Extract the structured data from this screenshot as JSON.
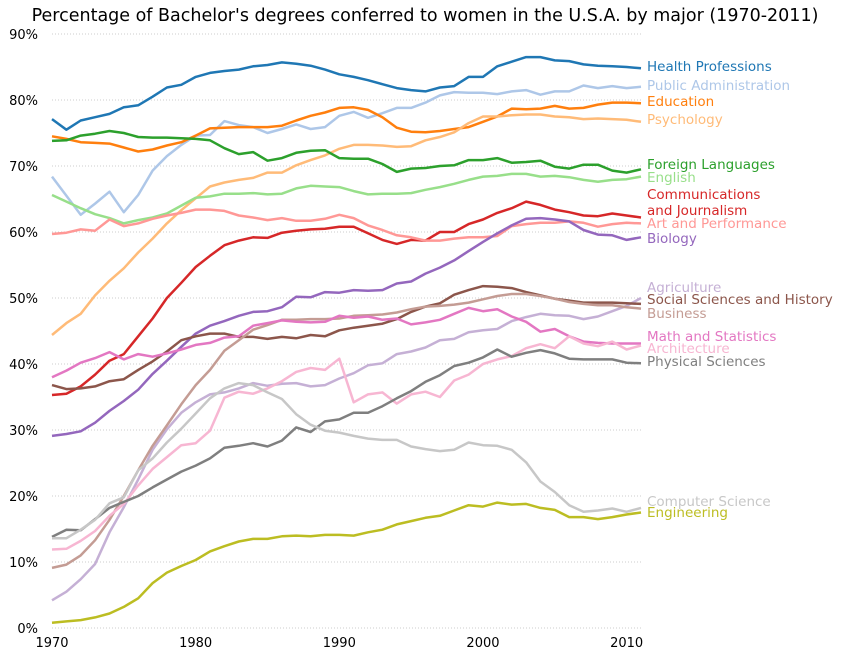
{
  "chart_data": {
    "type": "line",
    "title": "Percentage of Bachelor's degrees conferred to women in the U.S.A. by major (1970-2011)",
    "xlabel": "",
    "ylabel": "",
    "xlim": [
      1970,
      2011
    ],
    "ylim": [
      0,
      90
    ],
    "x_ticks": [
      "1970",
      "1980",
      "1990",
      "2000",
      "2010"
    ],
    "y_ticks": [
      "0%",
      "10%",
      "20%",
      "30%",
      "40%",
      "50%",
      "60%",
      "70%",
      "80%",
      "90%"
    ],
    "grid": "horizontal-dotted",
    "legend": "labels at right end of each line",
    "x": [
      1970,
      1971,
      1972,
      1973,
      1974,
      1975,
      1976,
      1977,
      1978,
      1979,
      1980,
      1981,
      1982,
      1983,
      1984,
      1985,
      1986,
      1987,
      1988,
      1989,
      1990,
      1991,
      1992,
      1993,
      1994,
      1995,
      1996,
      1997,
      1998,
      1999,
      2000,
      2001,
      2002,
      2003,
      2004,
      2005,
      2006,
      2007,
      2008,
      2009,
      2010,
      2011
    ],
    "series": [
      {
        "name": "Health Professions",
        "color": "#1f77b4",
        "values": [
          77.1,
          75.5,
          76.9,
          77.4,
          77.9,
          78.9,
          79.2,
          80.5,
          81.9,
          82.3,
          83.5,
          84.1,
          84.4,
          84.6,
          85.1,
          85.3,
          85.7,
          85.5,
          85.2,
          84.6,
          83.9,
          83.5,
          83.0,
          82.4,
          81.8,
          81.5,
          81.3,
          81.9,
          82.1,
          83.5,
          83.5,
          85.1,
          85.8,
          86.5,
          86.5,
          86.0,
          85.9,
          85.4,
          85.2,
          85.1,
          85.0,
          84.8
        ]
      },
      {
        "name": "Public Administration",
        "color": "#aec7e8",
        "values": [
          68.4,
          65.5,
          62.6,
          64.3,
          66.1,
          63.0,
          65.6,
          69.3,
          71.5,
          73.2,
          74.6,
          74.7,
          76.8,
          76.2,
          75.9,
          75.0,
          75.6,
          76.3,
          75.6,
          75.9,
          77.6,
          78.2,
          77.3,
          78.0,
          78.8,
          78.8,
          79.6,
          80.7,
          81.2,
          81.1,
          81.1,
          80.9,
          81.3,
          81.5,
          80.8,
          81.3,
          81.3,
          82.2,
          81.8,
          82.1,
          81.8,
          82.0
        ]
      },
      {
        "name": "Education",
        "color": "#ff7f0e",
        "values": [
          74.5,
          74.1,
          73.6,
          73.5,
          73.4,
          72.8,
          72.2,
          72.5,
          73.1,
          73.6,
          74.6,
          75.7,
          75.8,
          75.9,
          75.9,
          75.9,
          76.1,
          76.9,
          77.6,
          78.1,
          78.8,
          78.9,
          78.5,
          77.4,
          75.8,
          75.2,
          75.1,
          75.3,
          75.6,
          75.9,
          76.7,
          77.5,
          78.7,
          78.6,
          78.7,
          79.1,
          78.7,
          78.8,
          79.3,
          79.6,
          79.6,
          79.5
        ]
      },
      {
        "name": "Psychology",
        "color": "#ffbb78",
        "values": [
          44.4,
          46.2,
          47.6,
          50.4,
          52.6,
          54.5,
          56.9,
          59.0,
          61.3,
          63.3,
          65.1,
          66.9,
          67.5,
          67.9,
          68.2,
          69.0,
          69.0,
          70.1,
          70.9,
          71.6,
          72.6,
          73.2,
          73.2,
          73.1,
          72.9,
          73.0,
          73.9,
          74.4,
          75.1,
          76.5,
          77.5,
          77.5,
          77.7,
          77.8,
          77.8,
          77.5,
          77.4,
          77.1,
          77.2,
          77.1,
          77.0,
          76.7
        ]
      },
      {
        "name": "Foreign Languages",
        "color": "#2ca02c",
        "values": [
          73.8,
          73.9,
          74.6,
          74.9,
          75.3,
          75.0,
          74.4,
          74.3,
          74.3,
          74.2,
          74.1,
          73.9,
          72.7,
          71.8,
          72.1,
          70.8,
          71.2,
          72.0,
          72.3,
          72.4,
          71.2,
          71.1,
          71.1,
          70.3,
          69.1,
          69.6,
          69.7,
          70.0,
          70.1,
          70.9,
          70.9,
          71.2,
          70.5,
          70.6,
          70.8,
          69.9,
          69.6,
          70.2,
          70.2,
          69.3,
          69.0,
          69.5
        ]
      },
      {
        "name": "English",
        "color": "#98df8a",
        "values": [
          65.6,
          64.6,
          63.6,
          62.7,
          62.1,
          61.3,
          61.8,
          62.2,
          62.8,
          64.0,
          65.2,
          65.4,
          65.8,
          65.8,
          65.9,
          65.7,
          65.8,
          66.6,
          67.0,
          66.9,
          66.8,
          66.2,
          65.7,
          65.8,
          65.8,
          65.9,
          66.4,
          66.8,
          67.3,
          67.9,
          68.4,
          68.5,
          68.8,
          68.8,
          68.4,
          68.5,
          68.3,
          67.9,
          67.6,
          67.9,
          68.0,
          68.4
        ]
      },
      {
        "name": "Communications\nand Journalism",
        "color": "#d62728",
        "values": [
          35.3,
          35.5,
          36.6,
          38.4,
          40.5,
          41.5,
          44.2,
          46.9,
          50.0,
          52.3,
          54.7,
          56.4,
          58.0,
          58.7,
          59.2,
          59.1,
          59.9,
          60.2,
          60.4,
          60.5,
          60.8,
          60.8,
          59.8,
          58.8,
          58.2,
          58.8,
          58.7,
          60.0,
          60.0,
          61.2,
          61.9,
          62.9,
          63.6,
          64.6,
          64.1,
          63.4,
          63.0,
          62.5,
          62.4,
          62.8,
          62.5,
          62.2
        ]
      },
      {
        "name": "Art and Performance",
        "color": "#ff9896",
        "values": [
          59.7,
          59.9,
          60.4,
          60.2,
          61.9,
          60.9,
          61.3,
          62.0,
          62.5,
          62.9,
          63.4,
          63.4,
          63.2,
          62.5,
          62.2,
          61.8,
          62.1,
          61.7,
          61.7,
          62.0,
          62.6,
          62.1,
          61.0,
          60.3,
          59.5,
          59.2,
          58.7,
          58.7,
          59.0,
          59.2,
          59.2,
          59.4,
          60.9,
          61.2,
          61.4,
          61.4,
          61.6,
          61.4,
          60.8,
          61.2,
          61.4,
          61.3
        ]
      },
      {
        "name": "Biology",
        "color": "#9467bd",
        "values": [
          29.1,
          29.4,
          29.8,
          31.1,
          32.9,
          34.4,
          36.1,
          38.5,
          40.5,
          42.6,
          44.6,
          45.8,
          46.5,
          47.3,
          47.9,
          48.0,
          48.6,
          50.2,
          50.1,
          50.9,
          50.8,
          51.2,
          51.1,
          51.2,
          52.2,
          52.5,
          53.7,
          54.6,
          55.7,
          57.1,
          58.5,
          59.8,
          61.0,
          62.0,
          62.1,
          61.9,
          61.6,
          60.3,
          59.6,
          59.5,
          58.8,
          59.2
        ]
      },
      {
        "name": "Agriculture",
        "color": "#c5b0d5",
        "values": [
          4.2,
          5.5,
          7.4,
          9.7,
          14.5,
          18.3,
          22.5,
          27.0,
          30.1,
          32.6,
          34.2,
          35.4,
          35.7,
          36.3,
          37.1,
          36.7,
          37.0,
          37.1,
          36.6,
          36.8,
          37.8,
          38.6,
          39.8,
          40.1,
          41.5,
          41.9,
          42.5,
          43.6,
          43.8,
          44.8,
          45.1,
          45.3,
          46.5,
          47.1,
          47.6,
          47.4,
          47.3,
          46.8,
          47.2,
          48.0,
          48.8,
          50.0
        ]
      },
      {
        "name": "Social Sciences and History",
        "color": "#8c564b",
        "values": [
          36.8,
          36.2,
          36.3,
          36.6,
          37.4,
          37.7,
          39.1,
          40.4,
          41.9,
          43.6,
          44.2,
          44.6,
          44.6,
          44.1,
          44.1,
          43.8,
          44.1,
          43.9,
          44.4,
          44.2,
          45.1,
          45.5,
          45.8,
          46.1,
          46.8,
          47.9,
          48.7,
          49.2,
          50.5,
          51.2,
          51.8,
          51.7,
          51.5,
          50.9,
          50.4,
          49.9,
          49.6,
          49.3,
          49.3,
          49.3,
          49.2,
          49.1
        ]
      },
      {
        "name": "Business",
        "color": "#c49c94",
        "values": [
          9.1,
          9.6,
          11.0,
          13.3,
          16.4,
          20.0,
          23.9,
          27.6,
          30.7,
          33.9,
          36.8,
          39.1,
          42.0,
          43.6,
          45.2,
          45.9,
          46.7,
          46.7,
          46.8,
          46.8,
          46.9,
          47.3,
          47.4,
          47.5,
          47.8,
          48.3,
          48.7,
          48.8,
          49.0,
          49.3,
          49.8,
          50.3,
          50.6,
          50.6,
          50.3,
          49.9,
          49.4,
          49.1,
          48.9,
          48.9,
          48.6,
          48.4
        ]
      },
      {
        "name": "Math and Statistics",
        "color": "#e377c2",
        "values": [
          38.0,
          39.0,
          40.2,
          40.9,
          41.8,
          40.7,
          41.5,
          41.1,
          41.6,
          42.2,
          42.9,
          43.2,
          44.0,
          44.2,
          45.8,
          46.2,
          46.6,
          46.4,
          46.3,
          46.4,
          47.3,
          47.0,
          47.2,
          46.7,
          46.9,
          46.0,
          46.3,
          46.7,
          47.6,
          48.5,
          48.0,
          48.3,
          47.2,
          46.4,
          44.9,
          45.3,
          44.2,
          43.4,
          43.2,
          43.1,
          43.1,
          43.1
        ]
      },
      {
        "name": "Architecture",
        "color": "#f7b6d2",
        "values": [
          11.9,
          12.0,
          13.2,
          14.7,
          17.0,
          18.8,
          21.6,
          24.1,
          25.9,
          27.7,
          28.0,
          29.9,
          34.9,
          35.8,
          35.5,
          36.3,
          37.4,
          38.8,
          39.4,
          39.1,
          40.8,
          34.2,
          35.4,
          35.7,
          34.0,
          35.4,
          35.8,
          35.0,
          37.5,
          38.4,
          40.0,
          40.7,
          41.2,
          42.4,
          43.0,
          42.4,
          44.2,
          43.1,
          42.7,
          43.4,
          42.2,
          42.8
        ]
      },
      {
        "name": "Physical Sciences",
        "color": "#7f7f7f",
        "values": [
          13.8,
          14.9,
          14.8,
          16.5,
          18.2,
          19.1,
          20.0,
          21.3,
          22.5,
          23.7,
          24.6,
          25.7,
          27.3,
          27.6,
          28.0,
          27.5,
          28.4,
          30.4,
          29.7,
          31.3,
          31.6,
          32.6,
          32.6,
          33.6,
          34.8,
          35.9,
          37.3,
          38.3,
          39.7,
          40.2,
          41.0,
          42.2,
          41.1,
          41.7,
          42.1,
          41.6,
          40.8,
          40.7,
          40.7,
          40.7,
          40.2,
          40.1
        ]
      },
      {
        "name": "Computer Science",
        "color": "#c7c7c7",
        "values": [
          13.6,
          13.6,
          14.9,
          16.4,
          18.9,
          19.8,
          23.9,
          25.7,
          28.1,
          30.2,
          32.5,
          34.8,
          36.3,
          37.1,
          36.8,
          35.7,
          34.7,
          32.4,
          30.8,
          29.9,
          29.6,
          29.1,
          28.7,
          28.5,
          28.5,
          27.5,
          27.1,
          26.8,
          27.0,
          28.1,
          27.7,
          27.6,
          27.0,
          25.1,
          22.2,
          20.6,
          18.6,
          17.6,
          17.8,
          18.1,
          17.6,
          18.2
        ]
      },
      {
        "name": "Engineering",
        "color": "#bcbd22",
        "values": [
          0.8,
          1.0,
          1.2,
          1.6,
          2.2,
          3.2,
          4.5,
          6.8,
          8.4,
          9.4,
          10.3,
          11.6,
          12.4,
          13.1,
          13.5,
          13.5,
          13.9,
          14.0,
          13.9,
          14.1,
          14.1,
          14.0,
          14.5,
          14.9,
          15.7,
          16.2,
          16.7,
          17.0,
          17.8,
          18.6,
          18.4,
          19.0,
          18.7,
          18.8,
          18.2,
          17.9,
          16.8,
          16.8,
          16.5,
          16.8,
          17.2,
          17.5
        ]
      }
    ]
  }
}
